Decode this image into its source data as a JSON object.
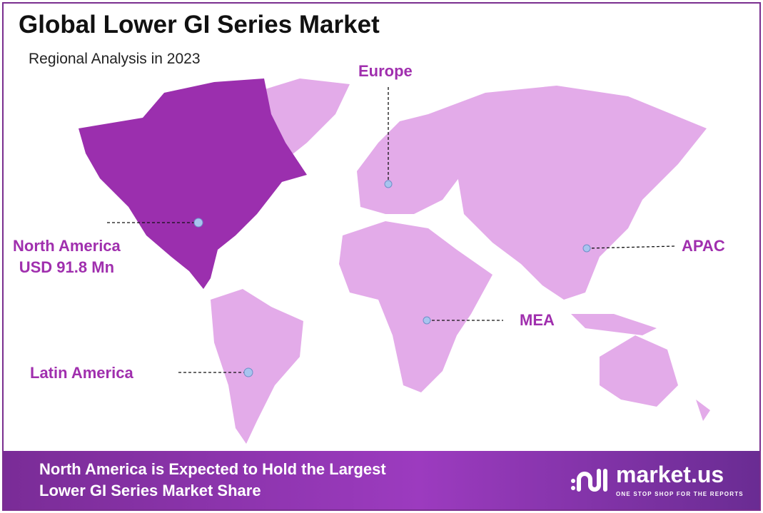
{
  "header": {
    "title": "Global Lower GI Series Market",
    "subtitle": "Regional Analysis in 2023"
  },
  "colors": {
    "highlight_region": "#9b2fae",
    "other_regions": "#e3abe9",
    "label": "#a02fae",
    "border": "#7a2f8f"
  },
  "regions": [
    {
      "name": "North America",
      "value": "USD 91.8 Mn",
      "highlighted": true
    },
    {
      "name": "Europe"
    },
    {
      "name": "APAC"
    },
    {
      "name": "MEA"
    },
    {
      "name": "Latin America"
    }
  ],
  "banner": {
    "line1": "North America is Expected to Hold the Largest",
    "line2": "Lower GI Series Market Share"
  },
  "logo": {
    "name": "market.us",
    "tagline": "ONE STOP SHOP FOR THE REPORTS"
  }
}
